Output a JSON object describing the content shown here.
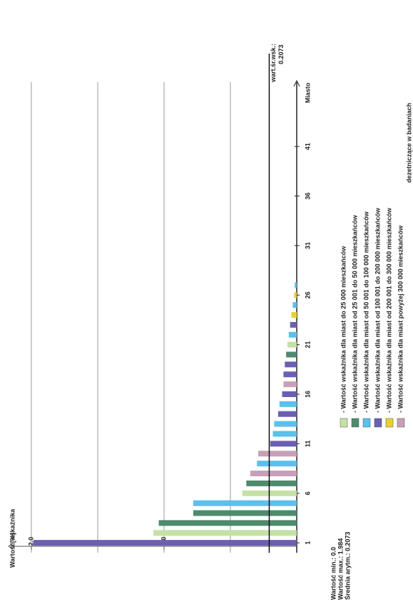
{
  "chart_data": {
    "type": "bar",
    "title": "dezetniczące w badaniach",
    "y_label": "Wartość wskaźnika",
    "y_unit": "[%]",
    "x_label": "Miasto",
    "x": [
      1,
      2,
      3,
      4,
      5,
      6,
      7,
      8,
      9,
      10,
      11,
      12,
      13,
      14,
      15,
      16,
      17,
      18,
      19,
      20,
      21,
      22,
      23,
      24,
      25,
      26,
      27
    ],
    "values": [
      1.984,
      1.08,
      1.04,
      0.78,
      0.78,
      0.41,
      0.38,
      0.35,
      0.3,
      0.29,
      0.2,
      0.18,
      0.17,
      0.14,
      0.13,
      0.11,
      0.1,
      0.1,
      0.09,
      0.08,
      0.07,
      0.06,
      0.05,
      0.04,
      0.03,
      0.02,
      0.015
    ],
    "colors": [
      "#6a5fb0",
      "#c5e0a5",
      "#4e8a6e",
      "#4e8a6e",
      "#5bc0eb",
      "#c5e0a5",
      "#4e8a6e",
      "#c7a0b8",
      "#5bc0eb",
      "#c7a0b8",
      "#6a5fb0",
      "#5bc0eb",
      "#5bc0eb",
      "#6a5fb0",
      "#5bc0eb",
      "#6a5fb0",
      "#c7a0b8",
      "#6a5fb0",
      "#6a5fb0",
      "#4e8a6e",
      "#c5e0a5",
      "#5bc0eb",
      "#6a5fb0",
      "#e8d030",
      "#5bc0eb",
      "#e8d030",
      "#5bc0eb"
    ],
    "xlim": [
      0,
      47
    ],
    "xticks": [
      1,
      6,
      11,
      16,
      21,
      26,
      31,
      36,
      41
    ],
    "ylim": [
      0,
      2.2
    ],
    "yticks": [
      {
        "value": 1,
        "label": "1.0"
      },
      {
        "value": 2,
        "label": "2.0"
      }
    ],
    "grid_lines": [
      0.5,
      1,
      1.5,
      2
    ],
    "mean": 0.2073,
    "mean_label": "wart.śr.wsk.:",
    "stats": [
      "Wartość min.: 0.0",
      "Wartość max.: 1.984",
      "Średnia arytm.: 0.2073"
    ],
    "legend": [
      {
        "label": "- Wartość wskaźnika dla miast do 25 000 mieszkańców",
        "color": "#c5e0a5"
      },
      {
        "label": "- Wartość wskaźnika dla miast od 25 001 do 50 000 mieszkańców",
        "color": "#4e8a6e"
      },
      {
        "label": "- Wartość wskaźnika dla miast od 50 001 do 100 000 mieszkańców",
        "color": "#5bc0eb"
      },
      {
        "label": "- Wartość wskaźnika dla miast od 100 001 do 200 000 mieszkańców",
        "color": "#6a5fb0"
      },
      {
        "label": "- Wartość wskaźnika dla miast od 200 001 do 300 000 mieszkańców",
        "color": "#e8d030"
      },
      {
        "label": "- Wartość wskaźnika dla miast powyżej 300 000 mieszkańców",
        "color": "#c7a0b8"
      }
    ]
  }
}
